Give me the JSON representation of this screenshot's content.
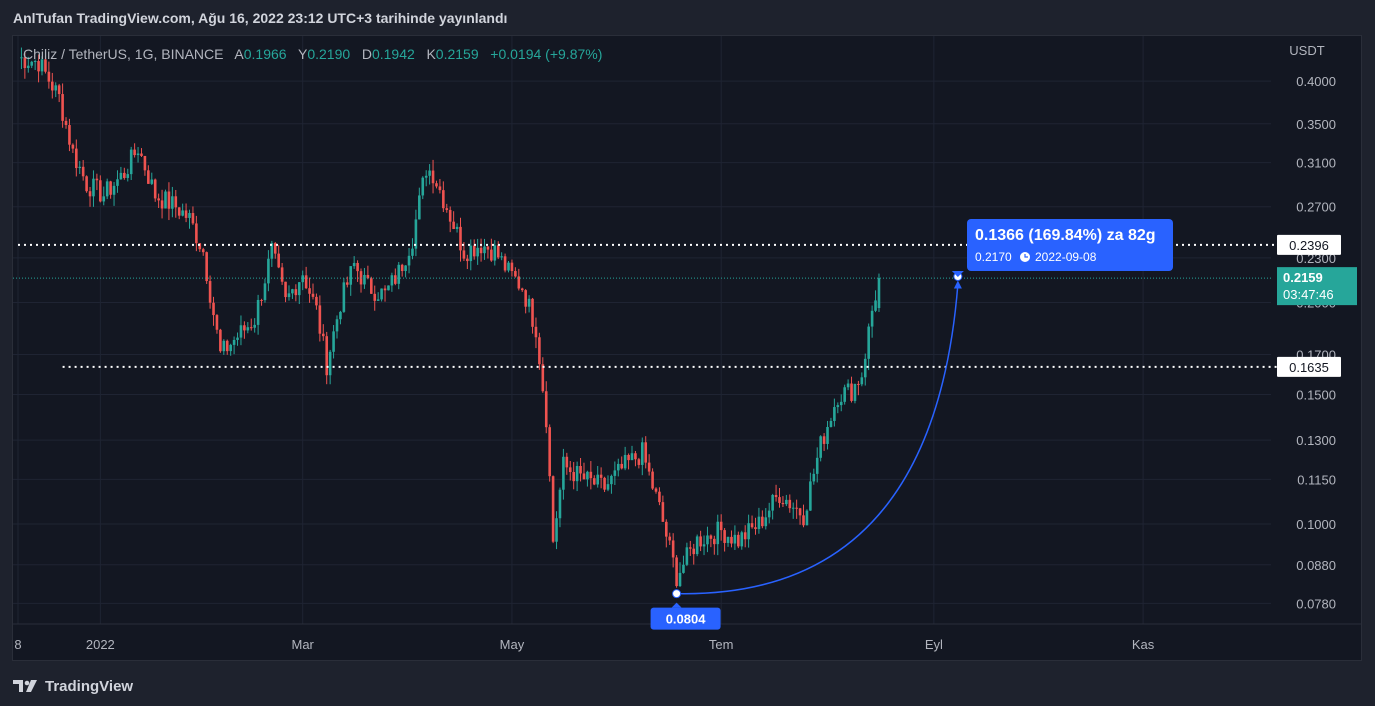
{
  "header": {
    "caption": "AnlTufan TradingView.com, Ağu 16, 2022 23:12 UTC+3 tarihinde yayınlandı"
  },
  "legend": {
    "symbol": "Chiliz / TetherUS, 1G, BINANCE",
    "open_label": "A",
    "open": "0.1966",
    "high_label": "Y",
    "high": "0.2190",
    "low_label": "D",
    "low": "0.1942",
    "close_label": "K",
    "close": "0.2159",
    "change": "+0.0194 (+9.87%)"
  },
  "footer": {
    "brand": "TradingView",
    "logo_icon": "tradingview-logo-icon"
  },
  "colors": {
    "background": "#131722",
    "up": "#26a69a",
    "down": "#ef5350",
    "grid": "#1f2433",
    "axis_text": "#b2b5be",
    "accent": "#2962ff",
    "last_price": "#26a69a"
  },
  "chart_data": {
    "type": "candlestick",
    "currency_label": "USDT",
    "y_scale": "log",
    "y_ticks": [
      "0.4000",
      "0.3500",
      "0.3100",
      "0.2700",
      "0.2300",
      "0.2000",
      "0.1700",
      "0.1500",
      "0.1300",
      "0.1150",
      "0.1000",
      "0.0880",
      "0.0780"
    ],
    "x_ticks": [
      {
        "label": "8",
        "date": "2021-12-08"
      },
      {
        "label": "2022",
        "date": "2022-01-01"
      },
      {
        "label": "Mar",
        "date": "2022-03-01"
      },
      {
        "label": "May",
        "date": "2022-05-01"
      },
      {
        "label": "Tem",
        "date": "2022-07-01"
      },
      {
        "label": "Eyl",
        "date": "2022-09-01"
      },
      {
        "label": "Kas",
        "date": "2022-11-01"
      }
    ],
    "x_range": [
      "2021-12-08",
      "2022-12-01"
    ],
    "y_range": [
      0.0745,
      0.455
    ],
    "horizontal_levels": [
      {
        "value": 0.2396,
        "label": "0.2396",
        "from_date": "2021-12-08"
      },
      {
        "value": 0.1635,
        "label": "0.1635",
        "from_date": "2021-12-21"
      }
    ],
    "last_price": {
      "value": 0.2159,
      "label": "0.2159",
      "countdown": "03:47:46"
    },
    "measure": {
      "start": {
        "date": "2022-06-18",
        "value": 0.0804,
        "label": "0.0804"
      },
      "end": {
        "date": "2022-09-08",
        "value": 0.217
      },
      "text": "0.1366 (169.84%) za 82g",
      "subtext": "0.2170",
      "subtext_date": "2022-09-08",
      "clock_icon": "clock-icon"
    },
    "close_path": [
      [
        "2021-12-08",
        0.43
      ],
      [
        "2021-12-14",
        0.425
      ],
      [
        "2021-12-20",
        0.38
      ],
      [
        "2021-12-24",
        0.32
      ],
      [
        "2021-12-28",
        0.29
      ],
      [
        "2022-01-02",
        0.28
      ],
      [
        "2022-01-08",
        0.3
      ],
      [
        "2022-01-12",
        0.325
      ],
      [
        "2022-01-17",
        0.28
      ],
      [
        "2022-01-23",
        0.27
      ],
      [
        "2022-01-27",
        0.26
      ],
      [
        "2022-01-31",
        0.235
      ],
      [
        "2022-02-05",
        0.17
      ],
      [
        "2022-02-10",
        0.18
      ],
      [
        "2022-02-15",
        0.19
      ],
      [
        "2022-02-20",
        0.235
      ],
      [
        "2022-02-24",
        0.2
      ],
      [
        "2022-03-01",
        0.22
      ],
      [
        "2022-03-05",
        0.195
      ],
      [
        "2022-03-08",
        0.165
      ],
      [
        "2022-03-12",
        0.2
      ],
      [
        "2022-03-16",
        0.225
      ],
      [
        "2022-03-20",
        0.21
      ],
      [
        "2022-03-25",
        0.205
      ],
      [
        "2022-03-29",
        0.22
      ],
      [
        "2022-04-02",
        0.245
      ],
      [
        "2022-04-06",
        0.305
      ],
      [
        "2022-04-08",
        0.3
      ],
      [
        "2022-04-12",
        0.27
      ],
      [
        "2022-04-17",
        0.235
      ],
      [
        "2022-04-22",
        0.24
      ],
      [
        "2022-04-26",
        0.235
      ],
      [
        "2022-04-30",
        0.22
      ],
      [
        "2022-05-04",
        0.21
      ],
      [
        "2022-05-08",
        0.185
      ],
      [
        "2022-05-11",
        0.14
      ],
      [
        "2022-05-13",
        0.095
      ],
      [
        "2022-05-16",
        0.12
      ],
      [
        "2022-05-22",
        0.115
      ],
      [
        "2022-05-28",
        0.112
      ],
      [
        "2022-06-03",
        0.12
      ],
      [
        "2022-06-08",
        0.125
      ],
      [
        "2022-06-13",
        0.105
      ],
      [
        "2022-06-18",
        0.085
      ],
      [
        "2022-06-24",
        0.095
      ],
      [
        "2022-07-01",
        0.098
      ],
      [
        "2022-07-06",
        0.095
      ],
      [
        "2022-07-12",
        0.1
      ],
      [
        "2022-07-18",
        0.11
      ],
      [
        "2022-07-25",
        0.103
      ],
      [
        "2022-07-30",
        0.128
      ],
      [
        "2022-08-04",
        0.15
      ],
      [
        "2022-08-08",
        0.152
      ],
      [
        "2022-08-11",
        0.16
      ],
      [
        "2022-08-14",
        0.195
      ],
      [
        "2022-08-16",
        0.216
      ]
    ]
  }
}
